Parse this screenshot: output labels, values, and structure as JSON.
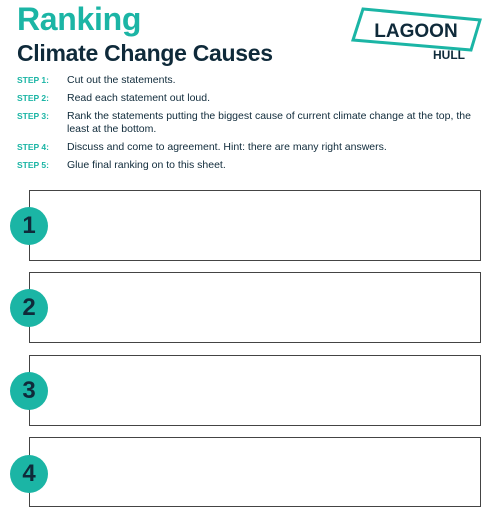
{
  "header": {
    "title": "Ranking",
    "subtitle": "Climate Change Causes"
  },
  "logo": {
    "line1": "LAGOON",
    "line2": "HULL",
    "border_color": "#1bb5a5"
  },
  "steps": [
    {
      "label": "STEP 1:",
      "text": "Cut out the statements."
    },
    {
      "label": "STEP 2:",
      "text": "Read each statement out loud."
    },
    {
      "label": "STEP 3:",
      "text": "Rank the statements putting the biggest cause of current climate change at the top, the least at the bottom."
    },
    {
      "label": "STEP 4:",
      "text": "Discuss and come to agreement. Hint: there are many right answers."
    },
    {
      "label": "STEP 5:",
      "text": "Glue final ranking on to this sheet."
    }
  ],
  "ranks": [
    {
      "number": "1"
    },
    {
      "number": "2"
    },
    {
      "number": "3"
    },
    {
      "number": "4"
    }
  ],
  "colors": {
    "accent": "#1bb5a5",
    "text_dark": "#0f2a3a"
  }
}
